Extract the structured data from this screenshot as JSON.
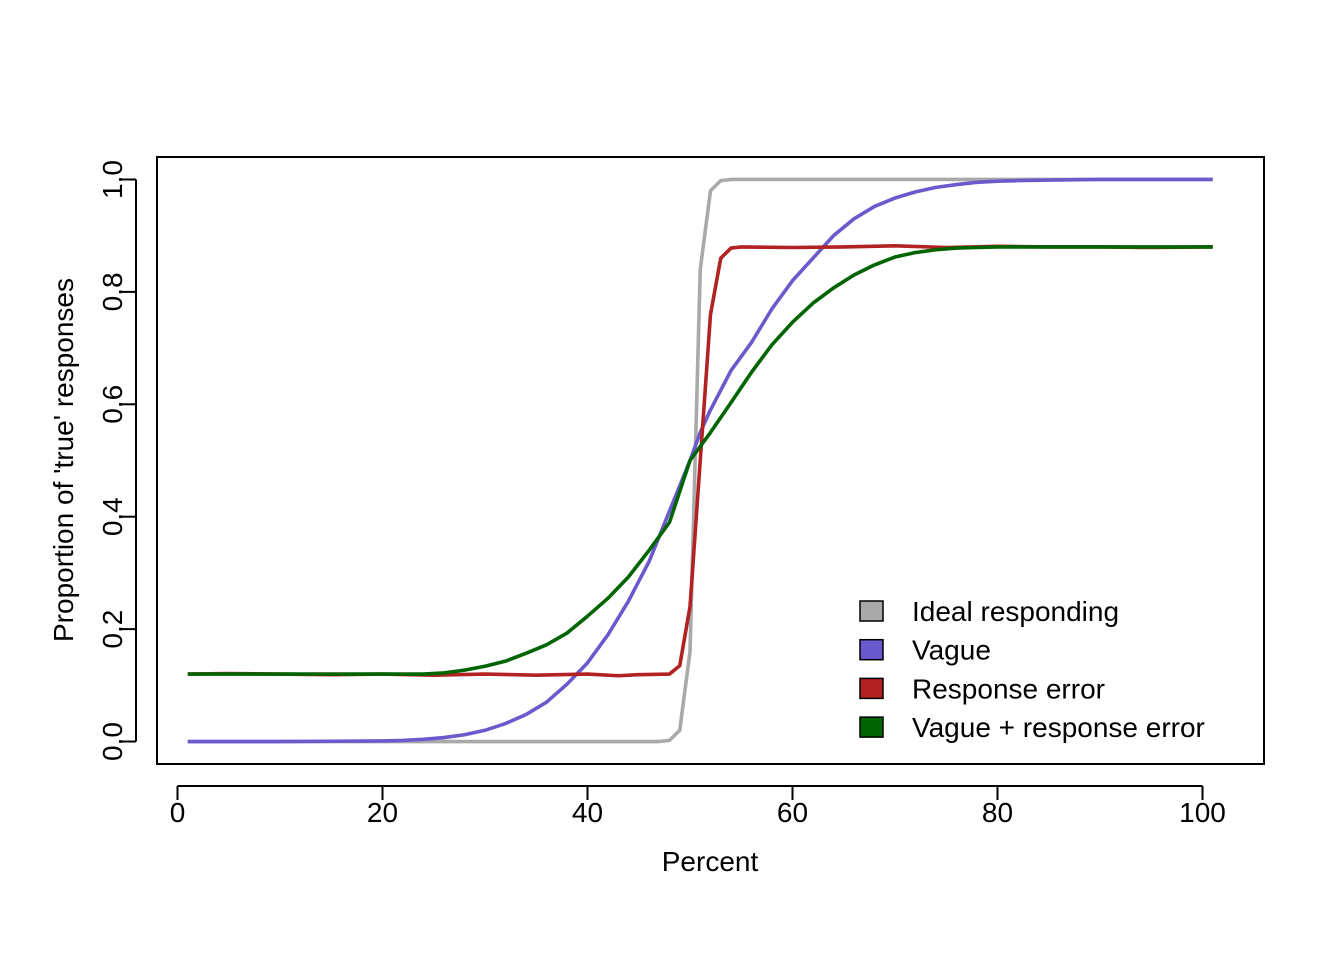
{
  "chart_data": {
    "type": "line",
    "title": "",
    "xlabel": "Percent",
    "ylabel": "Proportion of 'true' responses",
    "xlim": [
      -2,
      106
    ],
    "ylim": [
      -0.04,
      1.04
    ],
    "xticks": [
      0,
      20,
      40,
      60,
      80,
      100
    ],
    "yticks": [
      0.0,
      0.2,
      0.4,
      0.6,
      0.8,
      1.0
    ],
    "xtick_labels": [
      "0",
      "20",
      "40",
      "60",
      "80",
      "100"
    ],
    "ytick_labels": [
      "0.0",
      "0.2",
      "0.4",
      "0.6",
      "0.8",
      "1.0"
    ],
    "grid": false,
    "legend_position": "bottom-right",
    "series": [
      {
        "name": "Ideal responding",
        "color": "#a9a9a9",
        "x": [
          1,
          10,
          20,
          30,
          40,
          47,
          48,
          49,
          50,
          51,
          52,
          53,
          54,
          55,
          60,
          70,
          80,
          90,
          101
        ],
        "y": [
          0,
          0,
          0,
          0,
          0,
          0,
          0.002,
          0.02,
          0.16,
          0.84,
          0.98,
          0.998,
          1,
          1,
          1,
          1,
          1,
          1,
          1
        ]
      },
      {
        "name": "Vague",
        "color": "#6a5acd",
        "x": [
          1,
          10,
          15,
          20,
          22,
          24,
          26,
          28,
          30,
          32,
          34,
          36,
          38,
          40,
          42,
          44,
          46,
          48,
          50,
          51,
          52,
          54,
          56,
          58,
          60,
          62,
          64,
          66,
          68,
          70,
          72,
          74,
          76,
          78,
          80,
          82,
          85,
          90,
          101
        ],
        "y": [
          0,
          0,
          0.0005,
          0.001,
          0.002,
          0.004,
          0.007,
          0.012,
          0.02,
          0.032,
          0.048,
          0.07,
          0.102,
          0.14,
          0.19,
          0.25,
          0.32,
          0.41,
          0.5,
          0.55,
          0.59,
          0.66,
          0.71,
          0.77,
          0.82,
          0.86,
          0.9,
          0.93,
          0.952,
          0.967,
          0.978,
          0.986,
          0.991,
          0.995,
          0.997,
          0.998,
          0.999,
          1,
          1
        ]
      },
      {
        "name": "Response error",
        "color": "#b22222",
        "x": [
          1,
          5,
          10,
          15,
          20,
          25,
          30,
          35,
          40,
          43,
          45,
          48,
          49,
          50,
          51,
          52,
          53,
          54,
          55,
          60,
          65,
          70,
          75,
          80,
          85,
          90,
          95,
          101
        ],
        "y": [
          0.12,
          0.121,
          0.12,
          0.119,
          0.12,
          0.118,
          0.12,
          0.118,
          0.12,
          0.117,
          0.119,
          0.12,
          0.135,
          0.24,
          0.5,
          0.76,
          0.86,
          0.878,
          0.88,
          0.879,
          0.88,
          0.882,
          0.879,
          0.881,
          0.88,
          0.88,
          0.879,
          0.88
        ]
      },
      {
        "name": "Vague + response error",
        "color": "#006400",
        "x": [
          1,
          5,
          10,
          15,
          20,
          24,
          26,
          28,
          30,
          32,
          34,
          36,
          38,
          40,
          42,
          44,
          46,
          48,
          50,
          52,
          54,
          56,
          58,
          60,
          62,
          64,
          66,
          68,
          70,
          72,
          74,
          76,
          78,
          80,
          85,
          90,
          95,
          101
        ],
        "y": [
          0.12,
          0.12,
          0.12,
          0.12,
          0.12,
          0.12,
          0.122,
          0.127,
          0.134,
          0.143,
          0.157,
          0.172,
          0.193,
          0.223,
          0.255,
          0.293,
          0.34,
          0.39,
          0.5,
          0.55,
          0.603,
          0.657,
          0.706,
          0.746,
          0.78,
          0.807,
          0.83,
          0.848,
          0.862,
          0.87,
          0.875,
          0.878,
          0.879,
          0.88,
          0.88,
          0.88,
          0.88,
          0.88
        ]
      }
    ]
  }
}
